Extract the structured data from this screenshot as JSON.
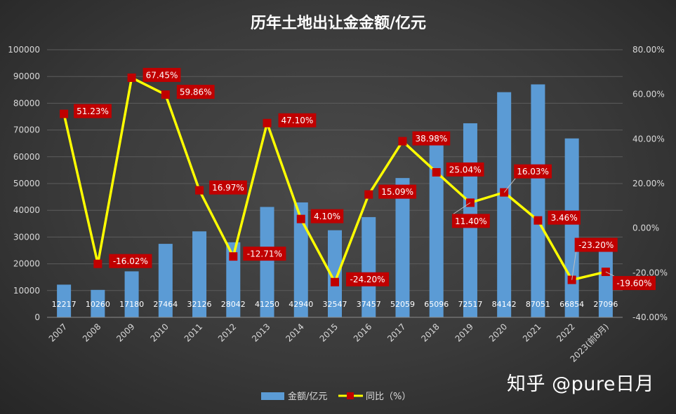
{
  "chart_data": {
    "type": "bar+line",
    "title": "历年土地出让金金额/亿元",
    "categories": [
      "2007",
      "2008",
      "2009",
      "2010",
      "2011",
      "2012",
      "2013",
      "2014",
      "2015",
      "2016",
      "2017",
      "2018",
      "2019",
      "2020",
      "2021",
      "2022",
      "2023(前8月)"
    ],
    "series": [
      {
        "name": "金额/亿元",
        "type": "bar",
        "axis": "left",
        "values": [
          12217,
          10260,
          17180,
          27464,
          32126,
          28042,
          41250,
          42940,
          32547,
          37457,
          52059,
          65096,
          72517,
          84142,
          87051,
          66854,
          27096
        ],
        "labels": [
          "12217",
          "10260",
          "17180",
          "27464",
          "32126",
          "28042",
          "41250",
          "42940",
          "32547",
          "37457",
          "52059",
          "65096",
          "72517",
          "84142",
          "87051",
          "66854",
          "27096"
        ],
        "color": "#5b9bd5"
      },
      {
        "name": "同比（%）",
        "type": "line",
        "axis": "right",
        "values": [
          51.23,
          -16.02,
          67.45,
          59.86,
          16.97,
          -12.71,
          47.1,
          4.1,
          -24.2,
          15.09,
          38.98,
          25.04,
          11.4,
          16.03,
          3.46,
          -23.2,
          -19.6
        ],
        "labels": [
          "51.23%",
          "-16.02%",
          "67.45%",
          "59.86%",
          "16.97%",
          "-12.71%",
          "47.10%",
          "4.10%",
          "-24.20%",
          "15.09%",
          "38.98%",
          "25.04%",
          "11.40%",
          "16.03%",
          "3.46%",
          "-23.20%",
          "-19.60%"
        ],
        "color": "#ffff00",
        "marker_color": "#c00000"
      }
    ],
    "y_left": {
      "min": 0,
      "max": 100000,
      "ticks": [
        "0",
        "10000",
        "20000",
        "30000",
        "40000",
        "50000",
        "60000",
        "70000",
        "80000",
        "90000",
        "100000"
      ]
    },
    "y_right": {
      "min": -40,
      "max": 80,
      "ticks": [
        "-40.00%",
        "-20.00%",
        "0.00%",
        "20.00%",
        "40.00%",
        "60.00%",
        "80.00%"
      ]
    },
    "grid": true,
    "legend_position": "bottom"
  },
  "watermark": "知乎 @pure日月"
}
